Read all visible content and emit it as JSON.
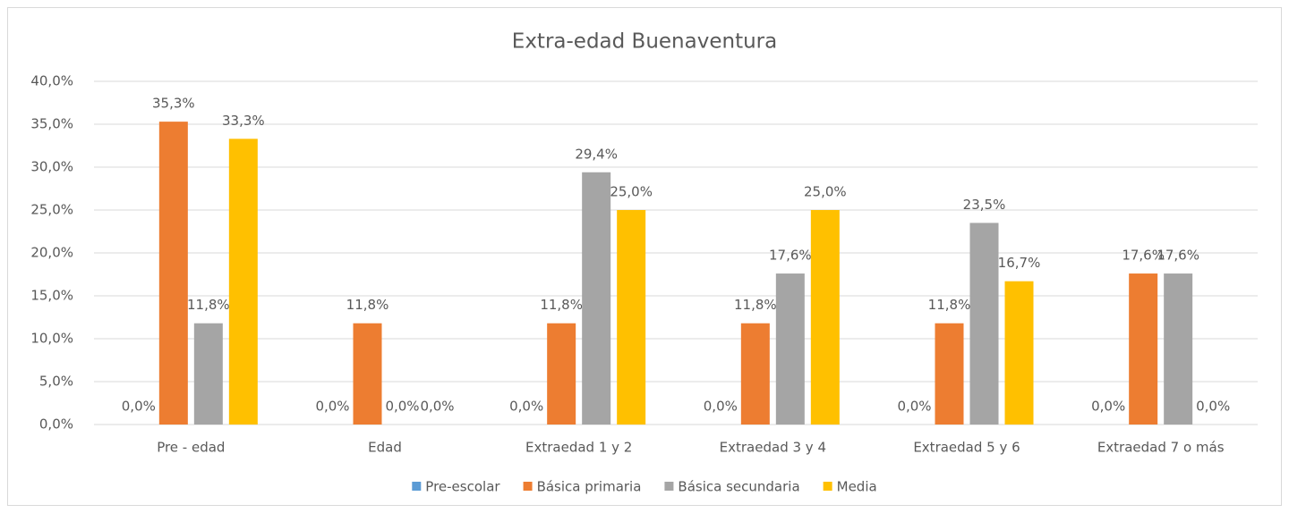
{
  "chart_data": {
    "type": "bar",
    "title": "Extra-edad Buenaventura",
    "categories": [
      "Pre - edad",
      "Edad",
      "Extraedad 1 y 2",
      "Extraedad 3 y 4",
      "Extraedad 5 y 6",
      "Extraedad 7 o más"
    ],
    "series": [
      {
        "name": "Pre-escolar",
        "color": "#5b9bd5",
        "values": [
          0,
          0,
          0,
          0,
          0,
          0
        ],
        "value_labels": [
          "0,0%",
          "0,0%",
          "0,0%",
          "0,0%",
          "0,0%",
          "0,0%"
        ]
      },
      {
        "name": "Básica primaria",
        "color": "#ed7d31",
        "values": [
          35.3,
          11.8,
          11.8,
          11.8,
          11.8,
          17.6
        ],
        "value_labels": [
          "35,3%",
          "11,8%",
          "11,8%",
          "11,8%",
          "11,8%",
          "17,6%"
        ]
      },
      {
        "name": "Básica secundaria",
        "color": "#a5a5a5",
        "values": [
          11.8,
          0,
          29.4,
          17.6,
          23.5,
          17.6
        ],
        "value_labels": [
          "11,8%",
          "0,0%",
          "29,4%",
          "17,6%",
          "23,5%",
          "17,6%"
        ]
      },
      {
        "name": "Media",
        "color": "#ffc000",
        "values": [
          33.3,
          0,
          25.0,
          25.0,
          16.7,
          0
        ],
        "value_labels": [
          "33,3%",
          "0,0%",
          "25,0%",
          "25,0%",
          "16,7%",
          "0,0%"
        ]
      }
    ],
    "ylim": [
      0,
      40
    ],
    "yticks": [
      {
        "value": 0,
        "label": "0,0%"
      },
      {
        "value": 5,
        "label": "5,0%"
      },
      {
        "value": 10,
        "label": "10,0%"
      },
      {
        "value": 15,
        "label": "15,0%"
      },
      {
        "value": 20,
        "label": "20,0%"
      },
      {
        "value": 25,
        "label": "25,0%"
      },
      {
        "value": 30,
        "label": "30,0%"
      },
      {
        "value": 35,
        "label": "35,0%"
      },
      {
        "value": 40,
        "label": "40,0%"
      }
    ],
    "grid": true,
    "legend": "bottom"
  }
}
